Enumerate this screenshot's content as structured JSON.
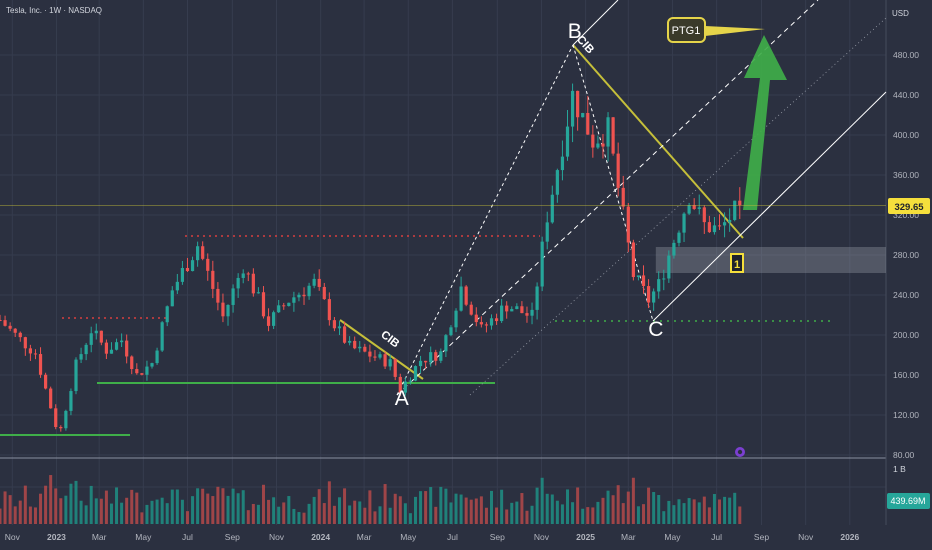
{
  "header": {
    "symbol_line": "Tesla, Inc. · 1W · NASDAQ"
  },
  "currency_label": "USD",
  "last_price_label": "329.65",
  "volume_axis_label": "1 B",
  "volume_last_label": "439.69M",
  "chart_data": {
    "type": "candlestick",
    "ylim": [
      80,
      520
    ],
    "y_ticks": [
      80,
      120,
      160,
      200,
      240,
      280,
      320,
      360,
      400,
      440,
      480
    ],
    "y_tick_labels": [
      "80.00",
      "120.00",
      "160.00",
      "200.00",
      "240.00",
      "280.00",
      "320.00",
      "360.00",
      "400.00",
      "440.00",
      "480.00"
    ],
    "x_range": [
      "2022-10-15",
      "2026-02-20"
    ],
    "x_ticks": [
      {
        "date": "2022-11-01",
        "label": "Nov",
        "bold": false
      },
      {
        "date": "2023-01-01",
        "label": "2023",
        "bold": true
      },
      {
        "date": "2023-03-01",
        "label": "Mar",
        "bold": false
      },
      {
        "date": "2023-05-01",
        "label": "May",
        "bold": false
      },
      {
        "date": "2023-07-01",
        "label": "Jul",
        "bold": false
      },
      {
        "date": "2023-09-01",
        "label": "Sep",
        "bold": false
      },
      {
        "date": "2023-11-01",
        "label": "Nov",
        "bold": false
      },
      {
        "date": "2024-01-01",
        "label": "2024",
        "bold": true
      },
      {
        "date": "2024-03-01",
        "label": "Mar",
        "bold": false
      },
      {
        "date": "2024-05-01",
        "label": "May",
        "bold": false
      },
      {
        "date": "2024-07-01",
        "label": "Jul",
        "bold": false
      },
      {
        "date": "2024-09-01",
        "label": "Sep",
        "bold": false
      },
      {
        "date": "2024-11-01",
        "label": "Nov",
        "bold": false
      },
      {
        "date": "2025-01-01",
        "label": "2025",
        "bold": true
      },
      {
        "date": "2025-03-01",
        "label": "Mar",
        "bold": false
      },
      {
        "date": "2025-05-01",
        "label": "May",
        "bold": false
      },
      {
        "date": "2025-07-01",
        "label": "Jul",
        "bold": false
      },
      {
        "date": "2025-09-01",
        "label": "Sep",
        "bold": false
      },
      {
        "date": "2025-11-01",
        "label": "Nov",
        "bold": false
      },
      {
        "date": "2026-01-01",
        "label": "2026",
        "bold": true
      }
    ],
    "price_path": [
      {
        "date": "2022-10-15",
        "close": 215
      },
      {
        "date": "2022-11-05",
        "close": 200
      },
      {
        "date": "2022-12-03",
        "close": 182
      },
      {
        "date": "2022-12-31",
        "close": 110
      },
      {
        "date": "2023-01-07",
        "close": 106
      },
      {
        "date": "2023-01-28",
        "close": 170
      },
      {
        "date": "2023-02-18",
        "close": 205
      },
      {
        "date": "2023-03-11",
        "close": 185
      },
      {
        "date": "2023-04-01",
        "close": 195
      },
      {
        "date": "2023-04-22",
        "close": 160
      },
      {
        "date": "2023-05-13",
        "close": 172
      },
      {
        "date": "2023-06-10",
        "close": 245
      },
      {
        "date": "2023-07-15",
        "close": 290
      },
      {
        "date": "2023-08-19",
        "close": 218
      },
      {
        "date": "2023-09-16",
        "close": 270
      },
      {
        "date": "2023-10-21",
        "close": 212
      },
      {
        "date": "2023-11-18",
        "close": 235
      },
      {
        "date": "2023-12-23",
        "close": 252
      },
      {
        "date": "2024-01-20",
        "close": 210
      },
      {
        "date": "2024-02-10",
        "close": 188
      },
      {
        "date": "2024-03-09",
        "close": 180
      },
      {
        "date": "2024-04-06",
        "close": 172
      },
      {
        "date": "2024-04-20",
        "close": 145
      },
      {
        "date": "2024-05-18",
        "close": 175
      },
      {
        "date": "2024-06-15",
        "close": 182
      },
      {
        "date": "2024-07-13",
        "close": 248
      },
      {
        "date": "2024-08-10",
        "close": 205
      },
      {
        "date": "2024-09-14",
        "close": 230
      },
      {
        "date": "2024-10-19",
        "close": 218
      },
      {
        "date": "2024-11-09",
        "close": 320
      },
      {
        "date": "2024-12-14",
        "close": 440
      },
      {
        "date": "2025-01-11",
        "close": 395
      },
      {
        "date": "2025-02-01",
        "close": 405
      },
      {
        "date": "2025-03-08",
        "close": 260
      },
      {
        "date": "2025-03-29",
        "close": 235
      },
      {
        "date": "2025-04-12",
        "close": 250
      },
      {
        "date": "2025-05-24",
        "close": 340
      },
      {
        "date": "2025-06-14",
        "close": 310
      },
      {
        "date": "2025-07-05",
        "close": 305
      },
      {
        "date": "2025-08-02",
        "close": 329.65
      }
    ],
    "annotations": {
      "point_labels": [
        {
          "label": "A",
          "date": "2024-04-22",
          "price": 130
        },
        {
          "label": "B",
          "date": "2024-12-17",
          "price": 497
        },
        {
          "label": "C",
          "date": "2025-04-08",
          "price": 199
        }
      ],
      "cib_labels": [
        {
          "label": "CIB",
          "date": "2024-04-03",
          "price": 193
        },
        {
          "label": "CIB",
          "date": "2024-12-28",
          "price": 488
        }
      ],
      "ptg_label": "PTG1",
      "zone_label": "1",
      "support_zone": {
        "from": "2025-04-08",
        "to": "2026-02-20",
        "low": 262,
        "high": 288
      }
    }
  }
}
